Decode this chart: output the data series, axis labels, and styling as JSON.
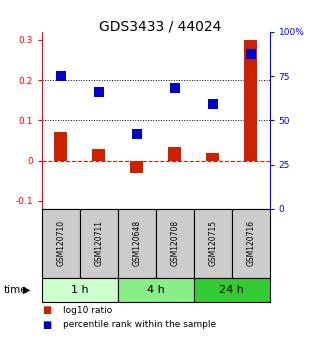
{
  "title": "GDS3433 / 44024",
  "samples": [
    "GSM120710",
    "GSM120711",
    "GSM120648",
    "GSM120708",
    "GSM120715",
    "GSM120716"
  ],
  "log10_ratio": [
    0.07,
    0.03,
    -0.03,
    0.035,
    0.02,
    0.3
  ],
  "percentile_rank": [
    0.21,
    0.17,
    0.065,
    0.18,
    0.14,
    0.265
  ],
  "time_groups": [
    {
      "label": "1 h",
      "start": 0,
      "end": 2,
      "color": "#ccffcc"
    },
    {
      "label": "4 h",
      "start": 2,
      "end": 4,
      "color": "#88ee88"
    },
    {
      "label": "24 h",
      "start": 4,
      "end": 6,
      "color": "#33cc33"
    }
  ],
  "ylim_left": [
    -0.12,
    0.32
  ],
  "ylim_right": [
    0,
    100
  ],
  "left_yticks": [
    -0.1,
    0.0,
    0.1,
    0.2,
    0.3
  ],
  "right_yticks": [
    0,
    25,
    50,
    75,
    100
  ],
  "bar_color": "#cc2200",
  "dot_color": "#0000cc",
  "bar_width": 0.35,
  "dot_size": 55,
  "title_fontsize": 10,
  "tick_fontsize": 6.5,
  "legend_fontsize": 6.5,
  "label_fontsize": 7.5,
  "sample_box_color": "#cccccc",
  "time_label_fontsize": 8
}
